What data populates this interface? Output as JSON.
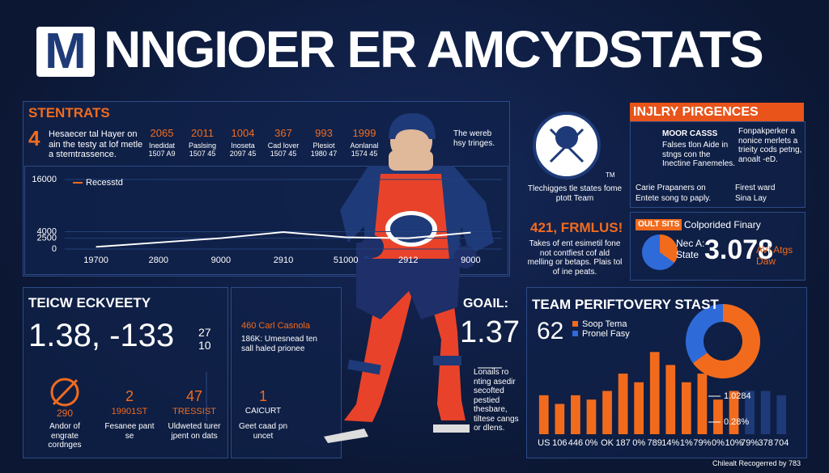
{
  "header": {
    "logo": "M",
    "title": "NNGIOER ER AMCYDSTATS"
  },
  "stats": {
    "heading": "STENTRATS",
    "number": "4",
    "description": "Hesaecer tal Hayer on ain the testy at lof metle a stemtrassence.",
    "items": [
      {
        "value": "2065",
        "label": "Inedidat 1507 A9"
      },
      {
        "value": "2011",
        "label": "Paslsing 1507 45"
      },
      {
        "value": "1004",
        "label": "Inoseta 2097 45"
      },
      {
        "value": "367",
        "label": "Cad lover 1507 45"
      },
      {
        "value": "993",
        "label": "Plesiot 1980 47"
      },
      {
        "value": "1999",
        "label": "Aonlanal 1574 45"
      }
    ]
  },
  "player": {
    "caption": "The wereb hsy tringes."
  },
  "team_info": {
    "mark": "TM",
    "caption": "Tlechigges tle states fome ptott Team",
    "highlight": "421, FRMLUS!",
    "text": "Takes of ent esimetil fone not contfiest cof ald melling or betaps. Plais tol of ine peats."
  },
  "injury": {
    "heading": "INJLRY PIRGENCES",
    "subheading": "MOOR CASSS",
    "text": "Falses tlon Aide in stngs con the Inectine Fanemeles.",
    "note": "Fonpakperker a nonice merlets a trieity cods petng, anoalt -eD.",
    "items": [
      "Carie Prapaners on",
      "Entete song to paply.",
      "Firest ward",
      "Sina Lay"
    ]
  },
  "summary": {
    "tag": "OULT SITS",
    "title": "Colporided Finary",
    "label": "Nec A: State",
    "value": "3.078",
    "note": "AVI Atgs Daw"
  },
  "efficiency": {
    "heading": "TEICW ECKVEETY",
    "value": "1.38, -133",
    "side": "27 10",
    "items": [
      {
        "value": "290",
        "label": "Andor of engrate cordnges"
      },
      {
        "value": "2",
        "sub": "19901ST",
        "label": "Fesanee pant se"
      },
      {
        "value": "47",
        "sub": "TRESSIST",
        "label": "Uldweted turer jpent on dats"
      }
    ]
  },
  "notes": {
    "first": "460 Carl Casnola",
    "second": "186K: Umesnead ten sall haled prionee",
    "value": "1",
    "sub": "CAICURT",
    "text": "Geet caad pn uncet"
  },
  "goal": {
    "label": "GOAIL:",
    "value": "1.37",
    "text": "Lonails ro nting asedir secofted pestied thesbare, tiltese cangs or dlens."
  },
  "team": {
    "heading": "TEAM PERIFTOVERY STAST",
    "value": "62"
  },
  "footer": "Chilealt Recogerred by 783",
  "chart_data": [
    {
      "type": "line",
      "categories": [
        "19700",
        "2800",
        "9000",
        "2910",
        "51000",
        "2912",
        "9000"
      ],
      "series": [
        {
          "name": "Recesstd",
          "color": "#ffffff",
          "values": [
            500,
            1500,
            2500,
            3900,
            2700,
            2500,
            3800
          ]
        }
      ],
      "ylim": [
        0,
        16000
      ],
      "yticks": [
        0,
        2500,
        4000,
        16000
      ],
      "grid": true
    },
    {
      "type": "pie",
      "categories": [
        "Soop Tema",
        "Pronel Fasy"
      ],
      "values": [
        65,
        35
      ],
      "colors": [
        "#f26b1d",
        "#2f6ad9"
      ]
    },
    {
      "type": "bar",
      "categories": [
        "US",
        "106",
        "446",
        "0%",
        "OK",
        "187",
        "0%",
        "789",
        "14%",
        "1%",
        "79%",
        "0%",
        "10%",
        "79%",
        "378",
        "704"
      ],
      "values": [
        45,
        35,
        45,
        40,
        50,
        70,
        60,
        95,
        80,
        60,
        70,
        40,
        50,
        50,
        50,
        45
      ],
      "colors": [
        "#f26b1d",
        "#f26b1d",
        "#f26b1d",
        "#f26b1d",
        "#f26b1d",
        "#f26b1d",
        "#f26b1d",
        "#f26b1d",
        "#f26b1d",
        "#f26b1d",
        "#f26b1d",
        "#f26b1d",
        "#f26b1d",
        "#1e3a78",
        "#1e3a78",
        "#1e3a78"
      ],
      "ylim": [
        0,
        100
      ],
      "annotations": [
        "1.0284",
        "0.28%"
      ]
    }
  ]
}
